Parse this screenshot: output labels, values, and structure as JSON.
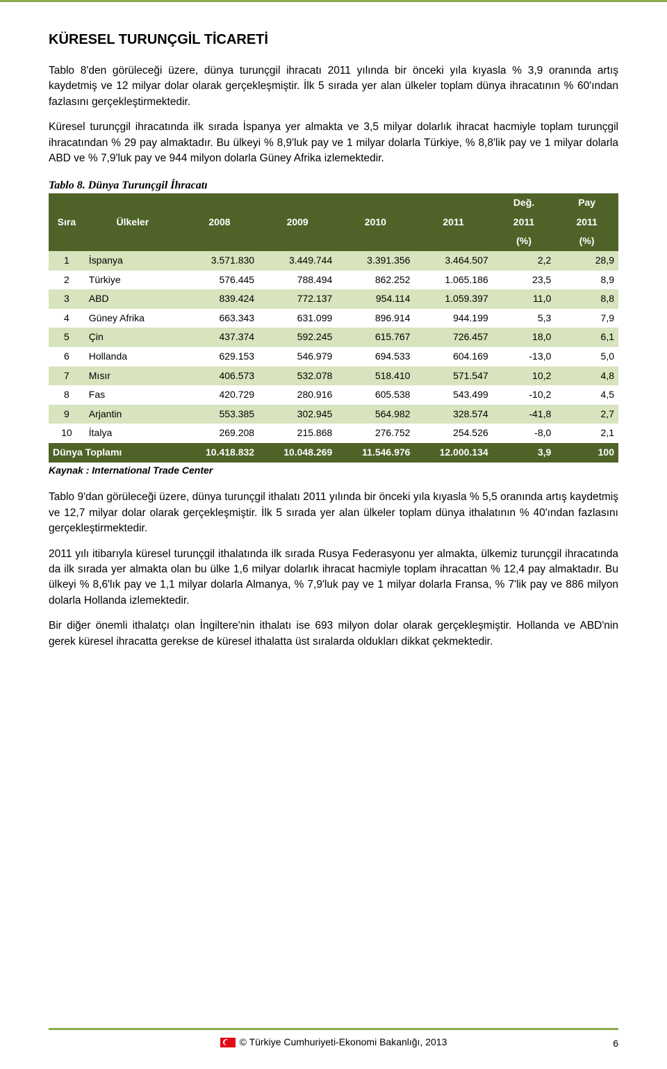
{
  "section_title": "KÜRESEL TURUNÇGİL TİCARETİ",
  "paragraphs": {
    "p1": "Tablo 8'den görüleceği üzere, dünya turunçgil ihracatı 2011 yılında bir önceki yıla kıyasla % 3,9 oranında artış kaydetmiş ve 12 milyar dolar olarak gerçekleşmiştir. İlk 5 sırada yer alan ülkeler toplam dünya ihracatının % 60'ından fazlasını gerçekleştirmektedir.",
    "p2": "Küresel turunçgil ihracatında ilk sırada İspanya yer almakta ve 3,5 milyar dolarlık ihracat hacmiyle toplam turunçgil ihracatından % 29 pay almaktadır. Bu ülkeyi % 8,9'luk pay ve 1 milyar dolarla Türkiye, % 8,8'lik pay ve 1 milyar dolarla ABD ve % 7,9'luk pay ve 944 milyon dolarla Güney Afrika izlemektedir.",
    "p3": "Tablo 9'dan görüleceği üzere, dünya turunçgil ithalatı 2011 yılında bir önceki yıla kıyasla % 5,5 oranında artış kaydetmiş ve 12,7 milyar dolar olarak gerçekleşmiştir. İlk 5 sırada yer alan ülkeler toplam dünya ithalatının % 40'ından fazlasını gerçekleştirmektedir.",
    "p4": "2011 yılı itibarıyla küresel turunçgil ithalatında ilk sırada Rusya Federasyonu yer almakta, ülkemiz turunçgil ihracatında da ilk sırada yer almakta olan bu ülke 1,6 milyar dolarlık ihracat hacmiyle toplam ihracattan % 12,4 pay almaktadır. Bu ülkeyi % 8,6'lık pay ve 1,1 milyar dolarla Almanya, % 7,9'luk pay ve 1 milyar dolarla Fransa, % 7'lik pay ve 886 milyon dolarla Hollanda izlemektedir.",
    "p5": "Bir diğer önemli ithalatçı olan İngiltere'nin ithalatı ise 693 milyon dolar olarak gerçekleşmiştir. Hollanda ve ABD'nin gerek küresel ihracatta gerekse de küresel ithalatta üst sıralarda oldukları dikkat çekmektedir."
  },
  "table8": {
    "caption": "Tablo 8. Dünya Turunçgil İhracatı",
    "headers": {
      "rank": "Sıra",
      "country": "Ülkeler",
      "y2008": "2008",
      "y2009": "2009",
      "y2010": "2010",
      "y2011": "2011",
      "change_top": "Değ.",
      "share_top": "Pay",
      "change_mid": "2011",
      "share_mid": "2011",
      "change_bot": "(%)",
      "share_bot": "(%)"
    },
    "rows": [
      {
        "rank": "1",
        "country": "İspanya",
        "y2008": "3.571.830",
        "y2009": "3.449.744",
        "y2010": "3.391.356",
        "y2011": "3.464.507",
        "chg": "2,2",
        "pay": "28,9"
      },
      {
        "rank": "2",
        "country": "Türkiye",
        "y2008": "576.445",
        "y2009": "788.494",
        "y2010": "862.252",
        "y2011": "1.065.186",
        "chg": "23,5",
        "pay": "8,9"
      },
      {
        "rank": "3",
        "country": "ABD",
        "y2008": "839.424",
        "y2009": "772.137",
        "y2010": "954.114",
        "y2011": "1.059.397",
        "chg": "11,0",
        "pay": "8,8"
      },
      {
        "rank": "4",
        "country": "Güney Afrika",
        "y2008": "663.343",
        "y2009": "631.099",
        "y2010": "896.914",
        "y2011": "944.199",
        "chg": "5,3",
        "pay": "7,9"
      },
      {
        "rank": "5",
        "country": "Çin",
        "y2008": "437.374",
        "y2009": "592.245",
        "y2010": "615.767",
        "y2011": "726.457",
        "chg": "18,0",
        "pay": "6,1"
      },
      {
        "rank": "6",
        "country": "Hollanda",
        "y2008": "629.153",
        "y2009": "546.979",
        "y2010": "694.533",
        "y2011": "604.169",
        "chg": "-13,0",
        "pay": "5,0"
      },
      {
        "rank": "7",
        "country": "Mısır",
        "y2008": "406.573",
        "y2009": "532.078",
        "y2010": "518.410",
        "y2011": "571.547",
        "chg": "10,2",
        "pay": "4,8"
      },
      {
        "rank": "8",
        "country": "Fas",
        "y2008": "420.729",
        "y2009": "280.916",
        "y2010": "605.538",
        "y2011": "543.499",
        "chg": "-10,2",
        "pay": "4,5"
      },
      {
        "rank": "9",
        "country": "Arjantin",
        "y2008": "553.385",
        "y2009": "302.945",
        "y2010": "564.982",
        "y2011": "328.574",
        "chg": "-41,8",
        "pay": "2,7"
      },
      {
        "rank": "10",
        "country": "İtalya",
        "y2008": "269.208",
        "y2009": "215.868",
        "y2010": "276.752",
        "y2011": "254.526",
        "chg": "-8,0",
        "pay": "2,1"
      }
    ],
    "total": {
      "label": "Dünya Toplamı",
      "y2008": "10.418.832",
      "y2009": "10.048.269",
      "y2010": "11.546.976",
      "y2011": "12.000.134",
      "chg": "3,9",
      "pay": "100"
    },
    "source": "Kaynak : International Trade Center",
    "colors": {
      "header_bg": "#4f6228",
      "header_fg": "#ffffff",
      "stripe_a": "#d7e4bd",
      "stripe_b": "#ffffff",
      "total_bg": "#4f6228",
      "total_fg": "#ffffff"
    }
  },
  "footer": {
    "text": "Türkiye Cumhuriyeti-Ekonomi Bakanlığı, 2013",
    "page": "6",
    "border_color": "#8aab4a"
  }
}
